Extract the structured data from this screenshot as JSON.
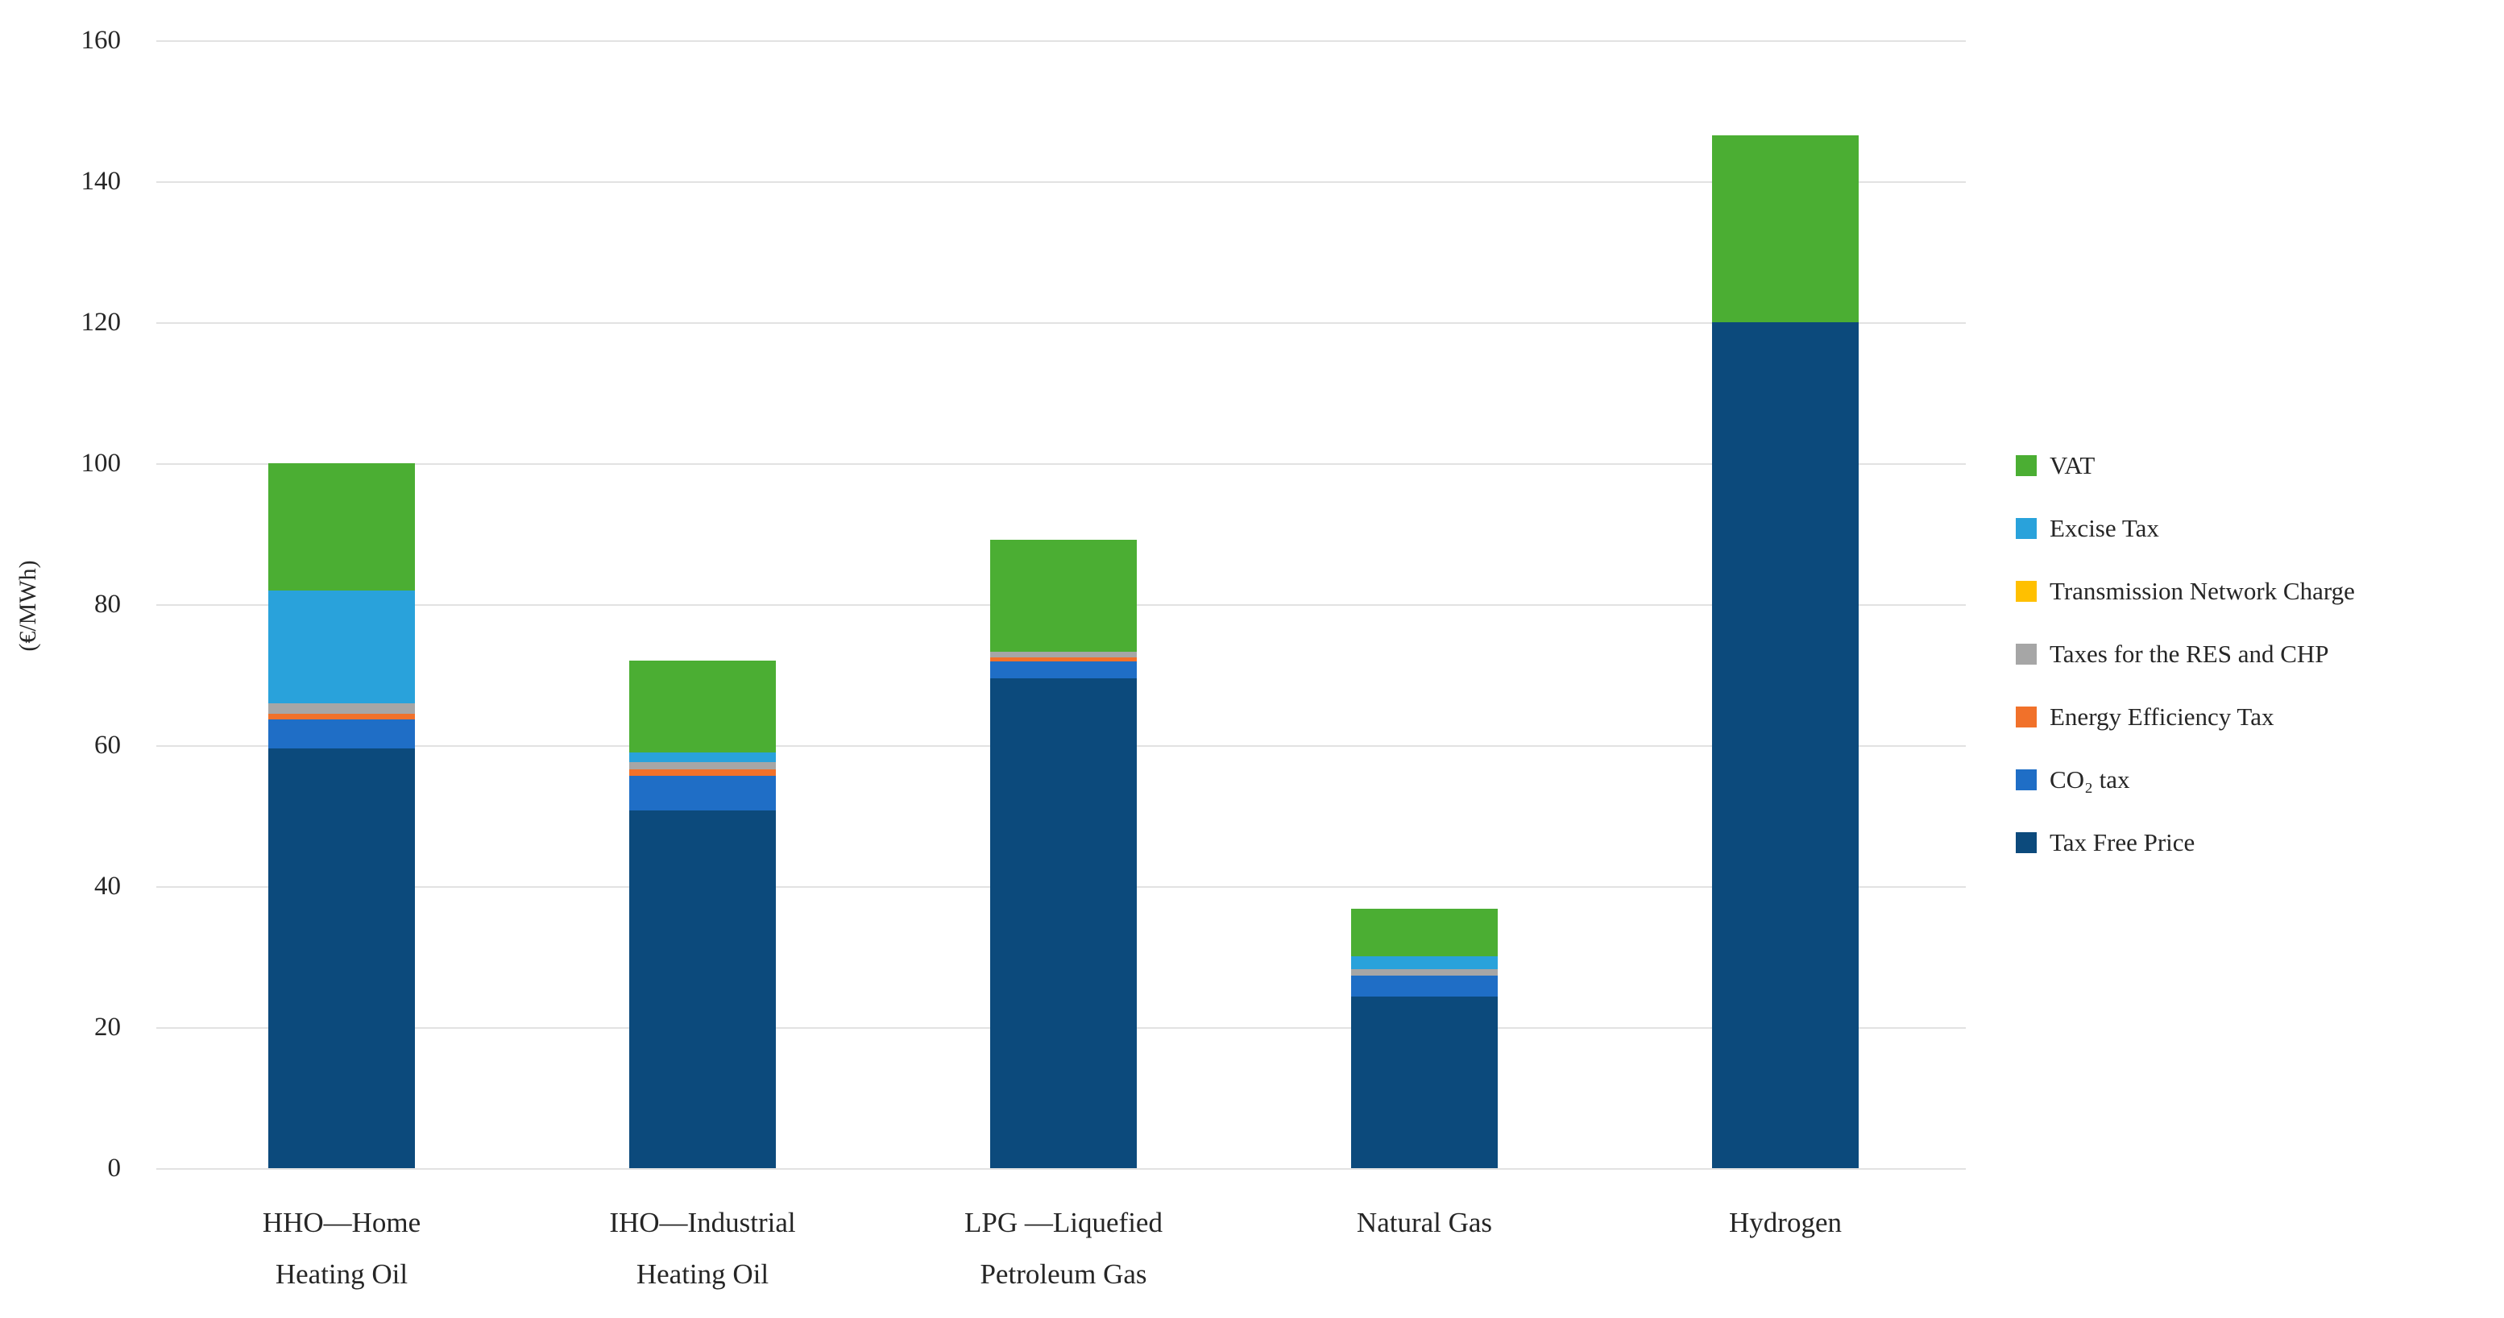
{
  "chart_data": {
    "type": "bar",
    "stacked": true,
    "title": "",
    "xlabel": "",
    "ylabel": "(€/MWh)",
    "ylim": [
      0,
      160
    ],
    "yticks": [
      0,
      20,
      40,
      60,
      80,
      100,
      120,
      140,
      160
    ],
    "grid": true,
    "legend_position": "right",
    "categories": [
      "HHO—Home Heating Oil",
      "IHO—Industrial Heating Oil",
      "LPG —Liquefied Petroleum Gas",
      "Natural Gas",
      "Hydrogen"
    ],
    "category_lines": [
      [
        "HHO—Home",
        "Heating Oil"
      ],
      [
        "IHO—Industrial",
        "Heating Oil"
      ],
      [
        "LPG —Liquefied",
        "Petroleum Gas"
      ],
      [
        "Natural Gas"
      ],
      [
        "Hydrogen"
      ]
    ],
    "series": [
      {
        "name": "Tax Free Price",
        "color": "#0c4a7c",
        "values": [
          59.5,
          50.8,
          69.5,
          24.3,
          120.0
        ]
      },
      {
        "name": "CO₂ tax",
        "color": "#1f6ec6",
        "values": [
          4.2,
          4.9,
          2.4,
          3.0,
          0
        ]
      },
      {
        "name": "Energy Efficiency Tax",
        "color": "#f1712a",
        "values": [
          0.8,
          0.9,
          0.6,
          0,
          0
        ]
      },
      {
        "name": "Taxes for the RES and CHP",
        "color": "#a6a6a6",
        "values": [
          1.5,
          1.0,
          0.8,
          0.9,
          0
        ]
      },
      {
        "name": "Transmission Network Charge",
        "color": "#ffc000",
        "values": [
          0,
          0,
          0,
          0,
          0
        ]
      },
      {
        "name": "Excise Tax",
        "color": "#29a2db",
        "values": [
          16.0,
          1.4,
          0,
          1.9,
          0
        ]
      },
      {
        "name": "VAT",
        "color": "#4bae33",
        "values": [
          18.0,
          13.0,
          15.8,
          6.7,
          26.5
        ]
      }
    ],
    "bar_totals": [
      100.0,
      72.0,
      89.1,
      36.8,
      146.5
    ],
    "legend_top_to_bottom": [
      "VAT",
      "Excise Tax",
      "Transmission Network Charge",
      "Taxes for the RES and CHP",
      "Energy Efficiency Tax",
      "CO₂ tax",
      "Tax Free Price"
    ],
    "colors": {
      "grid": "#e2e2e2",
      "text": "#262626",
      "background": "#ffffff"
    }
  }
}
